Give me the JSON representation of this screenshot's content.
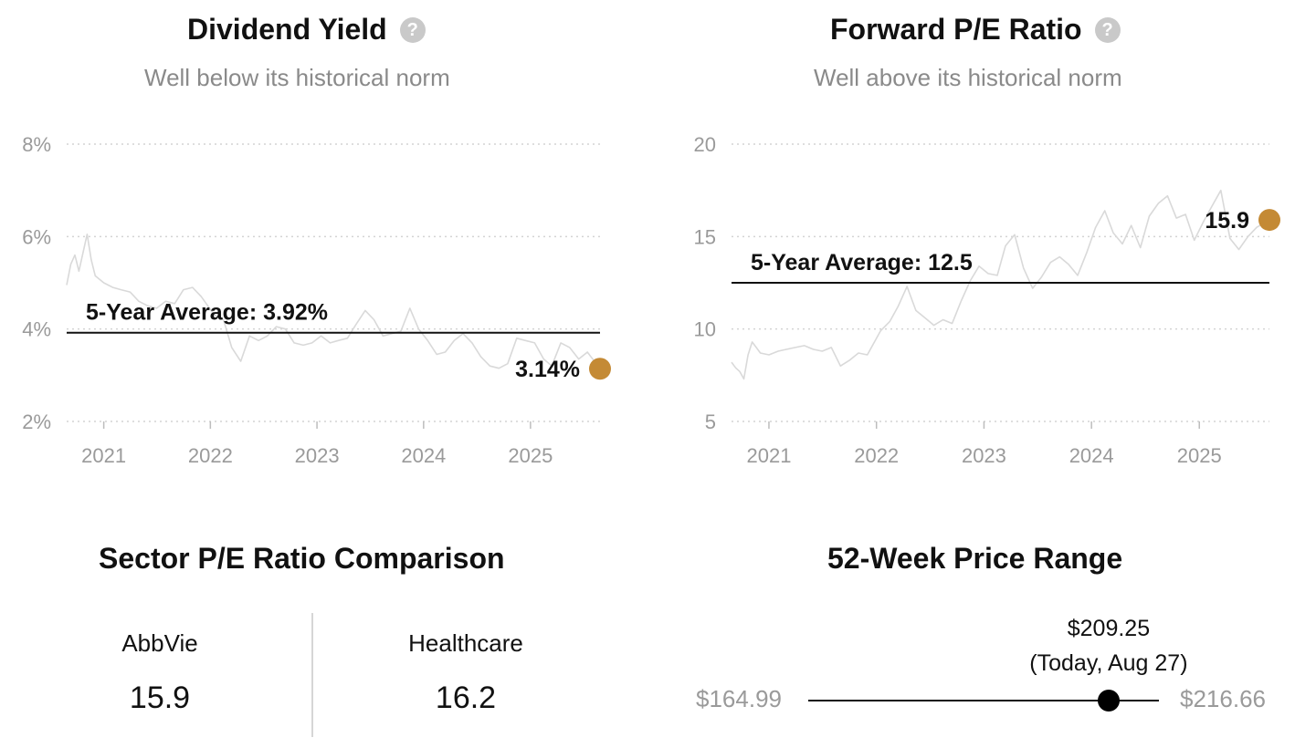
{
  "accent_color": "#c48a35",
  "line_color": "#d9d9d9",
  "dividend_yield": {
    "title": "Dividend Yield",
    "subtitle": "Well below its historical norm",
    "help_icon": "question-circle-icon",
    "average_label": "5-Year Average: 3.92%",
    "current_label": "3.14%"
  },
  "forward_pe": {
    "title": "Forward P/E Ratio",
    "subtitle": "Well above its historical norm",
    "help_icon": "question-circle-icon",
    "average_label": "5-Year Average: 12.5",
    "current_label": "15.9"
  },
  "sector_comparison": {
    "title": "Sector P/E Ratio Comparison",
    "items": [
      {
        "name": "AbbVie",
        "value": "15.9"
      },
      {
        "name": "Healthcare",
        "value": "16.2"
      }
    ]
  },
  "price_range": {
    "title": "52-Week Price Range",
    "low_label": "$164.99",
    "high_label": "$216.66",
    "current_price": "$209.25",
    "current_note": "(Today, Aug 27)",
    "low": 164.99,
    "high": 216.66,
    "current": 209.25
  },
  "chart_data": [
    {
      "type": "line",
      "title": "Dividend Yield",
      "subtitle": "Well below its historical norm",
      "y_unit": "%",
      "ylim": [
        2,
        8
      ],
      "yticks": [
        2,
        4,
        6,
        8
      ],
      "ytick_labels": [
        "2%",
        "4%",
        "6%",
        "8%"
      ],
      "xlim": [
        "2020-08-27",
        "2025-08-27"
      ],
      "xticks": [
        "2021-01-01",
        "2022-01-01",
        "2023-01-01",
        "2024-01-01",
        "2025-01-01"
      ],
      "xtick_labels": [
        "2021",
        "2022",
        "2023",
        "2024",
        "2025"
      ],
      "grid": true,
      "average": 3.92,
      "current": {
        "x": "2025-08-27",
        "y": 3.14
      },
      "x": [
        "2020-08-27",
        "2020-09-10",
        "2020-09-24",
        "2020-10-08",
        "2020-10-22",
        "2020-11-05",
        "2020-11-19",
        "2020-12-03",
        "2021-01-01",
        "2021-02-01",
        "2021-03-01",
        "2021-04-01",
        "2021-05-01",
        "2021-06-01",
        "2021-07-01",
        "2021-08-01",
        "2021-09-01",
        "2021-10-01",
        "2021-11-01",
        "2021-12-01",
        "2022-01-15",
        "2022-02-15",
        "2022-03-15",
        "2022-04-15",
        "2022-05-15",
        "2022-06-15",
        "2022-07-15",
        "2022-08-15",
        "2022-09-15",
        "2022-10-15",
        "2022-11-15",
        "2022-12-15",
        "2023-01-15",
        "2023-02-15",
        "2023-03-15",
        "2023-04-15",
        "2023-05-15",
        "2023-06-15",
        "2023-07-15",
        "2023-08-15",
        "2023-09-15",
        "2023-10-15",
        "2023-11-15",
        "2023-12-15",
        "2024-01-15",
        "2024-02-15",
        "2024-03-15",
        "2024-04-15",
        "2024-05-15",
        "2024-06-15",
        "2024-07-15",
        "2024-08-15",
        "2024-09-15",
        "2024-10-15",
        "2024-11-15",
        "2024-12-15",
        "2025-01-15",
        "2025-02-15",
        "2025-03-15",
        "2025-04-15",
        "2025-05-15",
        "2025-06-15",
        "2025-07-15",
        "2025-08-27"
      ],
      "y": [
        4.95,
        5.4,
        5.6,
        5.25,
        5.65,
        6.05,
        5.5,
        5.15,
        5.0,
        4.9,
        4.85,
        4.8,
        4.6,
        4.5,
        4.45,
        4.6,
        4.55,
        4.85,
        4.9,
        4.7,
        4.3,
        4.2,
        3.6,
        3.3,
        3.85,
        3.75,
        3.85,
        4.05,
        4.0,
        3.7,
        3.65,
        3.7,
        3.85,
        3.7,
        3.75,
        3.8,
        4.1,
        4.4,
        4.2,
        3.85,
        3.9,
        3.95,
        4.45,
        4.0,
        3.75,
        3.45,
        3.5,
        3.75,
        3.9,
        3.7,
        3.4,
        3.2,
        3.15,
        3.25,
        3.8,
        3.75,
        3.7,
        3.35,
        3.2,
        3.7,
        3.6,
        3.35,
        3.5,
        3.14
      ]
    },
    {
      "type": "line",
      "title": "Forward P/E Ratio",
      "subtitle": "Well above its historical norm",
      "ylim": [
        5,
        20
      ],
      "yticks": [
        5,
        10,
        15,
        20
      ],
      "ytick_labels": [
        "5",
        "10",
        "15",
        "20"
      ],
      "xlim": [
        "2020-08-27",
        "2025-08-27"
      ],
      "xticks": [
        "2021-01-01",
        "2022-01-01",
        "2023-01-01",
        "2024-01-01",
        "2025-01-01"
      ],
      "xtick_labels": [
        "2021",
        "2022",
        "2023",
        "2024",
        "2025"
      ],
      "grid": true,
      "average": 12.5,
      "current": {
        "x": "2025-08-27",
        "y": 15.9
      },
      "x": [
        "2020-08-27",
        "2020-09-10",
        "2020-09-24",
        "2020-10-08",
        "2020-10-22",
        "2020-11-05",
        "2020-11-19",
        "2020-12-03",
        "2021-01-01",
        "2021-02-01",
        "2021-03-01",
        "2021-04-01",
        "2021-05-01",
        "2021-06-01",
        "2021-07-01",
        "2021-08-01",
        "2021-09-01",
        "2021-10-01",
        "2021-11-01",
        "2021-12-01",
        "2022-01-15",
        "2022-02-15",
        "2022-03-15",
        "2022-04-15",
        "2022-05-15",
        "2022-06-15",
        "2022-07-15",
        "2022-08-15",
        "2022-09-15",
        "2022-10-15",
        "2022-11-15",
        "2022-12-15",
        "2023-01-15",
        "2023-02-15",
        "2023-03-15",
        "2023-04-15",
        "2023-05-15",
        "2023-06-15",
        "2023-07-15",
        "2023-08-15",
        "2023-09-15",
        "2023-10-15",
        "2023-11-15",
        "2023-12-15",
        "2024-01-15",
        "2024-02-15",
        "2024-03-15",
        "2024-04-15",
        "2024-05-15",
        "2024-06-15",
        "2024-07-15",
        "2024-08-15",
        "2024-09-15",
        "2024-10-15",
        "2024-11-15",
        "2024-12-15",
        "2025-01-15",
        "2025-02-15",
        "2025-03-15",
        "2025-04-15",
        "2025-05-15",
        "2025-06-15",
        "2025-07-15",
        "2025-08-27"
      ],
      "y": [
        8.2,
        7.9,
        7.7,
        7.3,
        8.6,
        9.3,
        9.0,
        8.7,
        8.6,
        8.8,
        8.9,
        9.0,
        9.1,
        8.9,
        8.8,
        9.0,
        8.0,
        8.3,
        8.7,
        8.6,
        9.9,
        10.4,
        11.2,
        12.3,
        11.0,
        10.6,
        10.2,
        10.5,
        10.3,
        11.5,
        12.6,
        13.4,
        13.0,
        12.9,
        14.5,
        15.1,
        13.3,
        12.2,
        12.8,
        13.6,
        13.9,
        13.5,
        12.9,
        14.1,
        15.5,
        16.4,
        15.2,
        14.6,
        15.6,
        14.4,
        16.1,
        16.8,
        17.2,
        16.0,
        16.2,
        14.8,
        15.8,
        16.7,
        17.5,
        14.9,
        14.3,
        15.0,
        15.5,
        15.9
      ]
    }
  ]
}
